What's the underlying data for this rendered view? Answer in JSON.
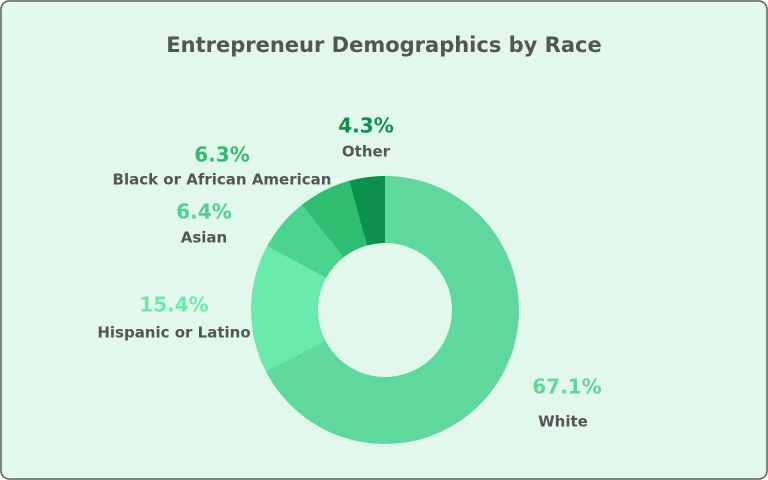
{
  "chart_data": {
    "type": "pie",
    "donut": true,
    "title": "Entrepreneur Demographics by Race",
    "categories": [
      "White",
      "Hispanic or Latino",
      "Asian",
      "Black or African American",
      "Other"
    ],
    "values": [
      67.1,
      15.4,
      6.4,
      6.3,
      4.3
    ],
    "value_labels": [
      "67.1%",
      "15.4%",
      "6.4%",
      "6.3%",
      "4.3%"
    ],
    "colors": [
      "#5fd89d",
      "#6aeaad",
      "#4ad48d",
      "#2ebd71",
      "#0c914e"
    ]
  }
}
